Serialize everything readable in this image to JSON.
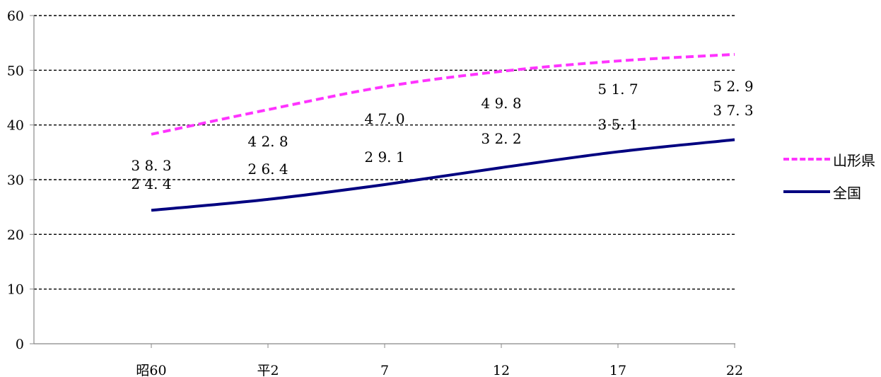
{
  "chart_data": {
    "type": "line",
    "categories": [
      "昭60",
      "平2",
      "7",
      "12",
      "17",
      "22"
    ],
    "series": [
      {
        "name": "山形県",
        "values": [
          38.3,
          42.8,
          47.0,
          49.8,
          51.7,
          52.9
        ],
        "color": "#ff33ff",
        "dash": "dashed"
      },
      {
        "name": "全国",
        "values": [
          24.4,
          26.4,
          29.1,
          32.2,
          35.1,
          37.3
        ],
        "color": "#000080",
        "dash": "solid"
      }
    ],
    "ylim": [
      0,
      60
    ],
    "yticks": [
      "0",
      "10",
      "20",
      "30",
      "40",
      "50",
      "60"
    ],
    "grid": "horizontal dashed",
    "legend_position": "right"
  }
}
